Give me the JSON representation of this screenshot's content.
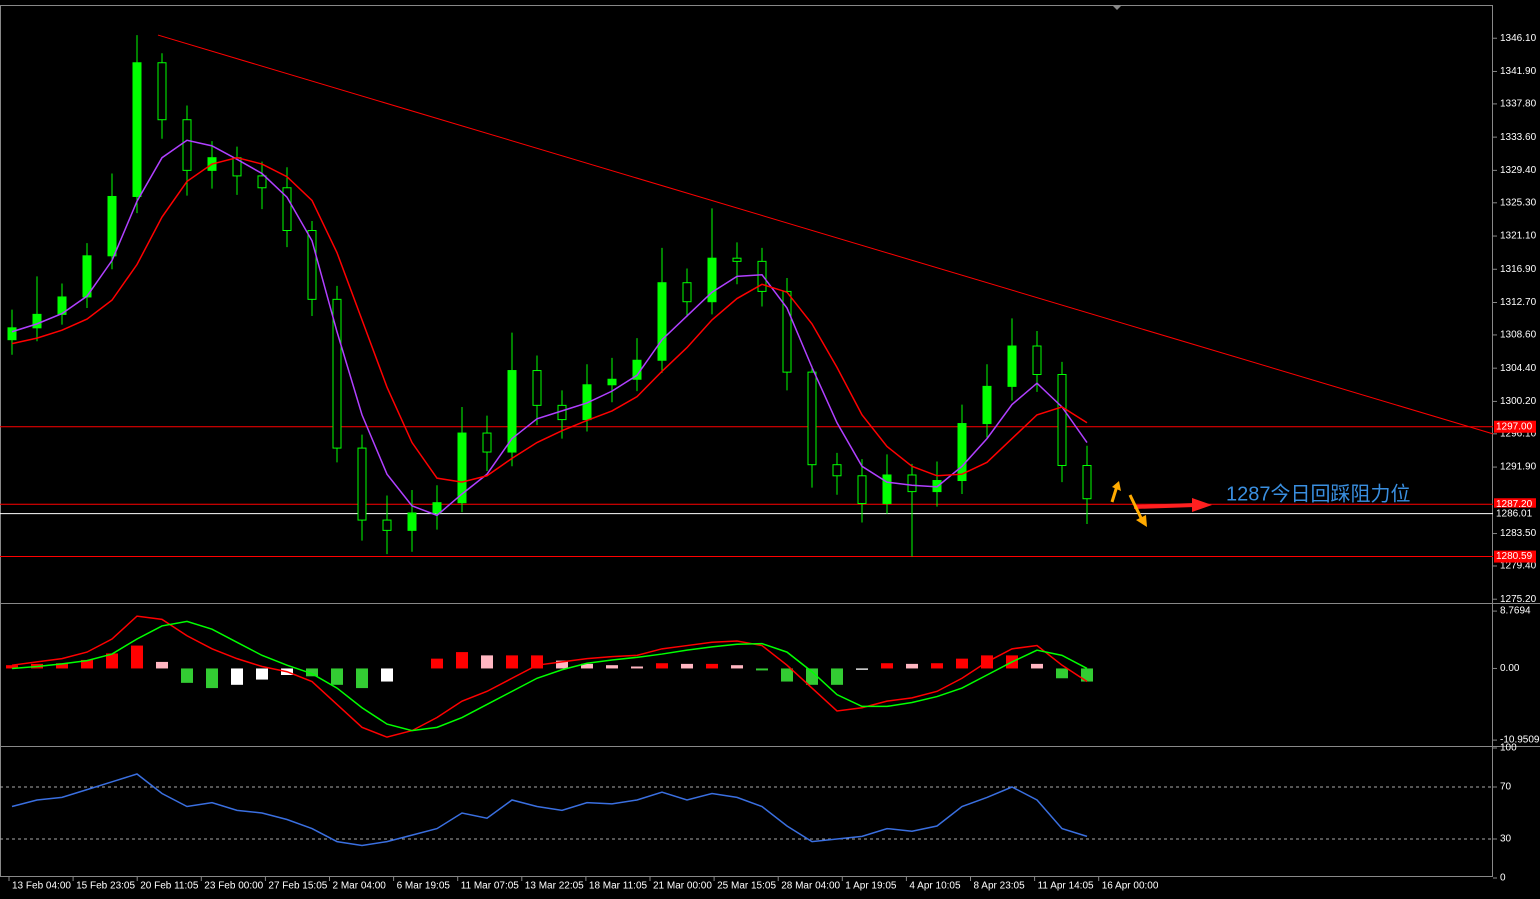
{
  "chart_data": [
    {
      "type": "candlestick",
      "x_labels": [
        "13 Feb 04:00",
        "15 Feb 23:05",
        "20 Feb 11:05",
        "23 Feb 00:00",
        "27 Feb 15:05",
        "2 Mar 04:00",
        "6 Mar 19:05",
        "11 Mar 07:05",
        "13 Mar 22:05",
        "18 Mar 11:05",
        "21 Mar 00:00",
        "25 Mar 15:05",
        "28 Mar 04:00",
        "1 Apr 19:05",
        "4 Apr 10:05",
        "8 Apr 23:05",
        "11 Apr 14:05",
        "16 Apr 00:00"
      ],
      "open": [
        1308.0,
        1309.5,
        1311.2,
        1313.4,
        1318.6,
        1326.1,
        1343.0,
        1335.8,
        1329.4,
        1331.0,
        1328.7,
        1327.2,
        1321.8,
        1313.1,
        1294.3,
        1285.2,
        1283.9,
        1286.1,
        1287.4,
        1296.2,
        1293.8,
        1304.1,
        1299.7,
        1297.9,
        1302.3,
        1303.0,
        1305.4,
        1315.2,
        1312.8,
        1318.3,
        1317.9,
        1314.1,
        1303.9,
        1292.2,
        1290.8,
        1287.3,
        1290.9,
        1288.8,
        1290.2,
        1297.4,
        1302.1,
        1307.2,
        1303.6,
        1292.1
      ],
      "high": [
        1311.8,
        1316.0,
        1315.1,
        1320.2,
        1329.0,
        1346.5,
        1344.2,
        1337.6,
        1333.1,
        1332.4,
        1330.5,
        1329.8,
        1323.0,
        1314.8,
        1296.0,
        1288.3,
        1289.0,
        1289.6,
        1299.5,
        1298.4,
        1308.9,
        1306.0,
        1301.6,
        1304.9,
        1305.7,
        1308.2,
        1319.6,
        1317.0,
        1324.6,
        1320.3,
        1319.6,
        1315.8,
        1304.7,
        1293.7,
        1292.9,
        1293.5,
        1292.3,
        1292.6,
        1299.8,
        1304.9,
        1310.7,
        1309.1,
        1305.2,
        1294.6
      ],
      "low": [
        1306.1,
        1307.8,
        1309.9,
        1312.0,
        1316.9,
        1324.0,
        1333.4,
        1326.2,
        1327.1,
        1326.3,
        1324.5,
        1319.7,
        1311.0,
        1292.5,
        1282.6,
        1280.9,
        1281.2,
        1284.0,
        1286.2,
        1291.4,
        1292.0,
        1297.2,
        1295.5,
        1296.4,
        1300.1,
        1301.5,
        1303.8,
        1310.9,
        1311.2,
        1315.0,
        1312.2,
        1301.6,
        1289.3,
        1288.4,
        1284.9,
        1286.0,
        1280.6,
        1286.9,
        1288.5,
        1295.6,
        1300.3,
        1301.4,
        1290.0,
        1284.7
      ],
      "close": [
        1309.5,
        1311.2,
        1313.4,
        1318.6,
        1326.1,
        1343.0,
        1335.8,
        1329.4,
        1331.0,
        1328.7,
        1327.2,
        1321.8,
        1313.1,
        1294.3,
        1285.2,
        1283.9,
        1286.1,
        1287.4,
        1296.2,
        1293.8,
        1304.1,
        1299.7,
        1297.9,
        1302.3,
        1303.0,
        1305.4,
        1315.2,
        1312.8,
        1318.3,
        1317.9,
        1314.1,
        1303.9,
        1292.2,
        1290.8,
        1287.3,
        1290.9,
        1288.8,
        1290.2,
        1297.4,
        1302.1,
        1307.2,
        1303.6,
        1292.1,
        1287.9
      ],
      "color": "#00ff00",
      "series": [
        {
          "color": "#b040ff",
          "values": [
            1309.0,
            1310.0,
            1311.3,
            1313.5,
            1318.0,
            1325.5,
            1331.0,
            1333.2,
            1332.5,
            1330.8,
            1329.0,
            1326.0,
            1320.5,
            1309.0,
            1298.5,
            1291.0,
            1287.0,
            1285.8,
            1288.5,
            1291.0,
            1295.5,
            1298.0,
            1299.0,
            1300.0,
            1301.5,
            1303.5,
            1308.0,
            1311.0,
            1314.0,
            1316.0,
            1316.2,
            1312.0,
            1304.5,
            1297.5,
            1292.0,
            1290.0,
            1289.6,
            1289.4,
            1292.0,
            1295.5,
            1299.8,
            1302.5,
            1299.5,
            1295.0
          ]
        },
        {
          "color": "#ff0000",
          "values": [
            1307.5,
            1308.2,
            1309.2,
            1310.6,
            1313.0,
            1317.5,
            1323.5,
            1328.0,
            1330.2,
            1331.0,
            1330.2,
            1328.6,
            1325.6,
            1319.0,
            1310.5,
            1302.0,
            1295.0,
            1290.5,
            1290.0,
            1290.8,
            1293.0,
            1295.0,
            1296.5,
            1297.8,
            1299.0,
            1300.8,
            1304.0,
            1307.0,
            1310.5,
            1313.2,
            1315.0,
            1314.0,
            1310.0,
            1304.5,
            1298.5,
            1294.5,
            1292.0,
            1290.8,
            1291.0,
            1292.5,
            1295.5,
            1298.5,
            1299.5,
            1297.5
          ]
        }
      ],
      "trendline": {
        "values": [
          1346.5,
          1296.1
        ],
        "color": "#ff0000"
      },
      "levels": [
        {
          "value": 1297.0,
          "label": "1297.00",
          "color": "#ff0000"
        },
        {
          "value": 1287.2,
          "label": "1287.20",
          "color": "#ff0000"
        },
        {
          "value": 1286.01,
          "label": "1286.01",
          "color": "#ffffff"
        },
        {
          "value": 1280.59,
          "label": "1280.59",
          "color": "#ff0000"
        }
      ],
      "annotation": "1287今日回踩阻力位",
      "ylim": [
        1275.1,
        1350.3
      ],
      "yticks": [
        {
          "value": 1346.1,
          "label": "1346.10"
        },
        {
          "value": 1341.9,
          "label": "1341.90"
        },
        {
          "value": 1337.8,
          "label": "1337.80"
        },
        {
          "value": 1333.6,
          "label": "1333.60"
        },
        {
          "value": 1329.4,
          "label": "1329.40"
        },
        {
          "value": 1325.3,
          "label": "1325.30"
        },
        {
          "value": 1321.1,
          "label": "1321.10"
        },
        {
          "value": 1316.9,
          "label": "1316.90"
        },
        {
          "value": 1312.7,
          "label": "1312.70"
        },
        {
          "value": 1308.6,
          "label": "1308.60"
        },
        {
          "value": 1304.4,
          "label": "1304.40"
        },
        {
          "value": 1300.2,
          "label": "1300.20"
        },
        {
          "value": 1296.1,
          "label": "1296.10"
        },
        {
          "value": 1291.9,
          "label": "1291.90"
        },
        {
          "value": 1283.5,
          "label": "1283.50"
        },
        {
          "value": 1279.4,
          "label": "1279.40"
        },
        {
          "value": 1275.2,
          "label": "1275.20"
        }
      ]
    },
    {
      "type": "macd",
      "histogram": [
        0.5,
        0.7,
        0.8,
        1.3,
        2.3,
        3.5,
        1.0,
        -2.2,
        -3.0,
        -2.5,
        -1.7,
        -1.0,
        -1.2,
        -2.5,
        -3.0,
        -2.0,
        0.0,
        1.5,
        2.5,
        2.0,
        2.0,
        2.0,
        1.2,
        0.7,
        0.5,
        0.3,
        0.8,
        0.7,
        0.7,
        0.5,
        -0.3,
        -2.0,
        -2.5,
        -2.5,
        -0.2,
        0.8,
        0.7,
        0.8,
        1.5,
        2.0,
        2.0,
        0.7,
        -1.5,
        -2.0
      ],
      "hist_colors": [
        "#ff0000",
        "#ffb6c1",
        "#33cc33",
        "#ffffff"
      ],
      "series": [
        {
          "color": "#ff0000",
          "values": [
            0.5,
            1.0,
            1.5,
            2.5,
            4.5,
            8.0,
            7.5,
            5.0,
            3.0,
            1.5,
            0.3,
            -0.5,
            -2.0,
            -5.5,
            -9.0,
            -10.5,
            -9.5,
            -7.5,
            -5.0,
            -3.5,
            -1.5,
            0.5,
            1.0,
            1.5,
            1.8,
            2.0,
            3.0,
            3.5,
            4.0,
            4.2,
            3.5,
            0.5,
            -3.0,
            -6.5,
            -6.0,
            -5.0,
            -4.5,
            -3.5,
            -1.5,
            1.0,
            3.0,
            3.5,
            0.5,
            -2.0
          ]
        },
        {
          "color": "#00ff00",
          "values": [
            0.0,
            0.3,
            0.7,
            1.2,
            2.2,
            4.5,
            6.5,
            7.2,
            6.0,
            4.0,
            2.0,
            0.5,
            -0.8,
            -3.0,
            -6.0,
            -8.5,
            -9.5,
            -9.0,
            -7.5,
            -5.5,
            -3.5,
            -1.5,
            -0.2,
            0.8,
            1.3,
            1.7,
            2.2,
            2.8,
            3.3,
            3.7,
            3.8,
            2.5,
            -0.5,
            -4.0,
            -5.8,
            -5.8,
            -5.2,
            -4.3,
            -3.0,
            -1.0,
            1.0,
            2.8,
            2.0,
            0.0
          ]
        }
      ],
      "ylim": [
        -11.7,
        9.7
      ],
      "yticks": [
        8.7694,
        {
          "value": 0,
          "label": "0.00"
        },
        -10.9509
      ]
    },
    {
      "type": "rsi",
      "series": [
        {
          "color": "#3a6fe0",
          "values": [
            55,
            60,
            62,
            68,
            74,
            80,
            65,
            55,
            58,
            52,
            50,
            45,
            38,
            28,
            25,
            28,
            33,
            38,
            50,
            46,
            60,
            55,
            52,
            58,
            57,
            60,
            66,
            60,
            65,
            62,
            55,
            40,
            28,
            30,
            32,
            38,
            36,
            40,
            55,
            62,
            70,
            60,
            38,
            32
          ]
        }
      ],
      "levels": [
        30,
        70
      ],
      "ylim": [
        0,
        100
      ],
      "yticks": [
        0,
        30,
        70,
        100
      ]
    }
  ]
}
